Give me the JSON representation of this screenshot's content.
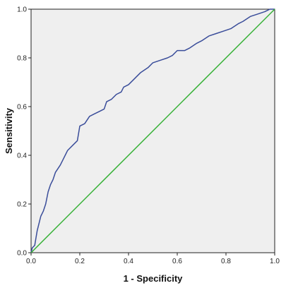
{
  "chart_data": {
    "type": "line",
    "title": "",
    "xlabel": "1 - Specificity",
    "ylabel": "Sensitivity",
    "xlim": [
      0.0,
      1.0
    ],
    "ylim": [
      0.0,
      1.0
    ],
    "x_ticks": [
      "0.0",
      "0.2",
      "0.4",
      "0.6",
      "0.8",
      "1.0"
    ],
    "y_ticks": [
      "0.0",
      "0.2",
      "0.4",
      "0.6",
      "0.8",
      "1.0"
    ],
    "grid": false,
    "series": [
      {
        "name": "",
        "color": "#3a4d9a",
        "points": [
          [
            0.0,
            0.0
          ],
          [
            0.005,
            0.02
          ],
          [
            0.015,
            0.03
          ],
          [
            0.02,
            0.06
          ],
          [
            0.025,
            0.09
          ],
          [
            0.03,
            0.11
          ],
          [
            0.04,
            0.15
          ],
          [
            0.05,
            0.17
          ],
          [
            0.06,
            0.2
          ],
          [
            0.07,
            0.25
          ],
          [
            0.08,
            0.28
          ],
          [
            0.09,
            0.3
          ],
          [
            0.1,
            0.33
          ],
          [
            0.12,
            0.36
          ],
          [
            0.13,
            0.38
          ],
          [
            0.14,
            0.4
          ],
          [
            0.15,
            0.42
          ],
          [
            0.17,
            0.44
          ],
          [
            0.19,
            0.46
          ],
          [
            0.2,
            0.52
          ],
          [
            0.22,
            0.53
          ],
          [
            0.24,
            0.56
          ],
          [
            0.26,
            0.57
          ],
          [
            0.28,
            0.58
          ],
          [
            0.3,
            0.59
          ],
          [
            0.31,
            0.62
          ],
          [
            0.33,
            0.63
          ],
          [
            0.35,
            0.65
          ],
          [
            0.37,
            0.66
          ],
          [
            0.38,
            0.68
          ],
          [
            0.4,
            0.69
          ],
          [
            0.42,
            0.71
          ],
          [
            0.45,
            0.74
          ],
          [
            0.48,
            0.76
          ],
          [
            0.5,
            0.78
          ],
          [
            0.53,
            0.79
          ],
          [
            0.56,
            0.8
          ],
          [
            0.58,
            0.81
          ],
          [
            0.6,
            0.83
          ],
          [
            0.63,
            0.83
          ],
          [
            0.65,
            0.84
          ],
          [
            0.68,
            0.86
          ],
          [
            0.7,
            0.87
          ],
          [
            0.73,
            0.89
          ],
          [
            0.76,
            0.9
          ],
          [
            0.79,
            0.91
          ],
          [
            0.82,
            0.92
          ],
          [
            0.85,
            0.94
          ],
          [
            0.87,
            0.95
          ],
          [
            0.9,
            0.97
          ],
          [
            0.93,
            0.98
          ],
          [
            0.96,
            0.99
          ],
          [
            0.98,
            1.0
          ],
          [
            1.0,
            1.0
          ]
        ]
      },
      {
        "name": "",
        "color": "#33b033",
        "points": [
          [
            0.0,
            0.0
          ],
          [
            1.0,
            1.0
          ]
        ]
      }
    ],
    "plot_background": "#efefef",
    "axis_color": "#222222"
  }
}
